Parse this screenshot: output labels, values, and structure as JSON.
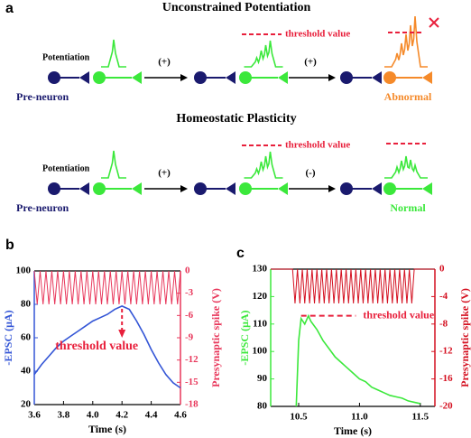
{
  "diagram": {
    "label": "a",
    "rows": [
      {
        "title": "Unconstrained Potentiation",
        "stimulus": "Potentiation",
        "steps": [
          "(+)",
          "(+)"
        ],
        "threshold": "threshold value",
        "pre": "Pre-neuron",
        "outcome": "Abnormal"
      },
      {
        "title": "Homeostatic Plasticity",
        "stimulus": "Potentiation",
        "steps": [
          "(+)",
          "(-)"
        ],
        "threshold": "threshold value",
        "pre": "Pre-neuron",
        "outcome": "Normal"
      }
    ]
  },
  "chart_data": [
    {
      "type": "line",
      "label": "b",
      "xlabel": "Time (s)",
      "ylabel": "-EPSC (μA)",
      "y2label": "Presynaptic spike (V)",
      "xlim": [
        3.6,
        4.6
      ],
      "xticks": [
        3.6,
        3.8,
        {
          "value": 4,
          "label": "4.0"
        },
        4.2,
        4.4,
        4.6
      ],
      "ylim": [
        20,
        100
      ],
      "yticks": [
        20,
        40,
        60,
        80,
        100
      ],
      "y2lim": [
        -18,
        0
      ],
      "y2ticks": [
        0,
        -3,
        -6,
        -9,
        -12,
        -15,
        -18
      ],
      "series": [
        {
          "color": "#3355d6",
          "x": [
            3.6,
            3.65,
            3.7,
            3.75,
            3.8,
            3.85,
            3.9,
            3.95,
            4.0,
            4.05,
            4.1,
            4.15,
            4.2,
            4.25,
            4.3,
            4.35,
            4.4,
            4.45,
            4.5,
            4.55,
            4.6
          ],
          "values": [
            38,
            44,
            49,
            54,
            58,
            61,
            64,
            67,
            70,
            72,
            74,
            77,
            79,
            77,
            70,
            62,
            53,
            45,
            38,
            33,
            30
          ]
        },
        {
          "color": "#e8365a",
          "axis": "y2",
          "x": [
            3.6,
            3.62,
            3.64,
            3.66,
            3.68,
            3.7,
            3.72,
            3.74,
            3.76,
            3.78,
            3.8,
            3.82,
            3.84,
            3.86,
            3.88,
            3.9,
            3.92,
            3.94,
            3.96,
            3.98,
            4.0,
            4.02,
            4.04,
            4.06,
            4.08,
            4.1,
            4.12,
            4.14,
            4.16,
            4.18,
            4.2,
            4.22,
            4.24,
            4.26,
            4.28,
            4.3,
            4.32,
            4.34,
            4.36,
            4.38,
            4.4,
            4.42,
            4.44,
            4.46,
            4.48,
            4.5,
            4.52,
            4.54,
            4.56,
            4.58,
            4.6
          ],
          "values": [
            0,
            -4.5,
            0,
            -4.5,
            0,
            -4.5,
            0,
            -4.5,
            0,
            -4.5,
            0,
            -4.5,
            0,
            -4.5,
            0,
            -4.5,
            0,
            -4.5,
            0,
            -4.5,
            0,
            -4.5,
            0,
            -4.5,
            0,
            -4.5,
            0,
            -4.5,
            0,
            -4.5,
            0,
            -4.5,
            0,
            -4.5,
            0,
            -4.5,
            0,
            -4.5,
            0,
            -4.5,
            0,
            -4.5,
            0,
            -4.5,
            0,
            -4.5,
            0,
            -4.5,
            0,
            -4.5,
            0
          ]
        }
      ],
      "annotation": {
        "text": "threshold value",
        "x": 4.2
      }
    },
    {
      "type": "line",
      "label": "c",
      "xlabel": "Time (s)",
      "ylabel": "-EPSC (μA)",
      "y2label": "Presynaptic spike (V)",
      "xlim": [
        10.27,
        11.62
      ],
      "xticks": [
        10.5,
        {
          "value": 11,
          "label": "11.0"
        },
        11.5
      ],
      "ylim": [
        80,
        130
      ],
      "yticks": [
        80,
        90,
        100,
        110,
        120,
        130
      ],
      "y2lim": [
        -20,
        0
      ],
      "y2ticks": [
        0,
        -4,
        -8,
        -12,
        -16,
        -20
      ],
      "series": [
        {
          "color": "#3be83b",
          "x": [
            10.48,
            10.5,
            10.52,
            10.55,
            10.58,
            10.6,
            10.65,
            10.7,
            10.75,
            10.8,
            10.85,
            10.9,
            10.95,
            11.0,
            11.05,
            11.1,
            11.15,
            11.2,
            11.25,
            11.3,
            11.35,
            11.4,
            11.45,
            11.5
          ],
          "values": [
            80,
            104,
            112,
            110,
            113,
            111,
            108,
            104,
            101,
            98,
            96,
            94,
            92,
            90,
            89,
            87,
            86,
            85,
            84,
            83.5,
            83,
            82,
            81.5,
            81
          ]
        },
        {
          "color": "#d41020",
          "axis": "y2",
          "x": [
            10.27,
            10.45,
            10.47,
            10.49,
            10.51,
            10.53,
            10.55,
            10.57,
            10.59,
            10.61,
            10.63,
            10.65,
            10.67,
            10.69,
            10.71,
            10.73,
            10.75,
            10.77,
            10.79,
            10.81,
            10.83,
            10.85,
            10.87,
            10.89,
            10.91,
            10.93,
            10.95,
            10.97,
            10.99,
            11.01,
            11.03,
            11.05,
            11.07,
            11.09,
            11.11,
            11.13,
            11.15,
            11.17,
            11.19,
            11.21,
            11.23,
            11.25,
            11.27,
            11.29,
            11.31,
            11.33,
            11.35,
            11.37,
            11.39,
            11.41,
            11.43,
            11.45,
            11.62
          ],
          "values": [
            0,
            0,
            -5,
            0,
            -5,
            0,
            -5,
            0,
            -5,
            0,
            -5,
            0,
            -5,
            0,
            -5,
            0,
            -5,
            0,
            -5,
            0,
            -5,
            0,
            -5,
            0,
            -5,
            0,
            -5,
            0,
            -5,
            0,
            -5,
            0,
            -5,
            0,
            -5,
            0,
            -5,
            0,
            -5,
            0,
            -5,
            0,
            -5,
            0,
            -5,
            0,
            -5,
            0,
            -5,
            0,
            -5,
            0,
            0
          ]
        }
      ],
      "threshold": {
        "text": "threshold value",
        "value": 113,
        "x": [
          10.52,
          10.97
        ]
      }
    }
  ]
}
